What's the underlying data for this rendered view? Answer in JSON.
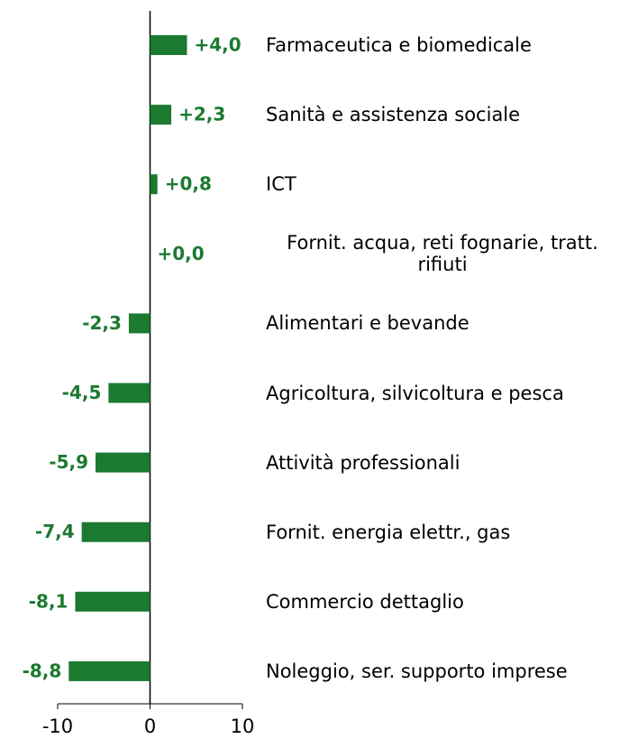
{
  "chart_data": {
    "type": "barh",
    "categories": [
      "Farmaceutica e biomedicale",
      "Sanità e assistenza sociale",
      "ICT",
      "Fornit. acqua, reti fognarie, tratt. rifiuti",
      "Alimentari e bevande",
      "Agricoltura, silvicoltura e pesca",
      "Attività professionali",
      "Fornit. energia elettr., gas",
      "Commercio dettaglio",
      "Noleggio, ser. supporto imprese"
    ],
    "values": [
      4.0,
      2.3,
      0.8,
      0.0,
      -2.3,
      -4.5,
      -5.9,
      -7.4,
      -8.1,
      -8.8
    ],
    "value_labels": [
      "+4,0",
      "+2,3",
      "+0,8",
      "+0,0",
      "-2,3",
      "-4,5",
      "-5,9",
      "-7,4",
      "-8,1",
      "-8,8"
    ],
    "color": "#1b7a30",
    "xlim": [
      -10,
      10
    ],
    "xticks": [
      -10,
      0,
      10
    ]
  }
}
